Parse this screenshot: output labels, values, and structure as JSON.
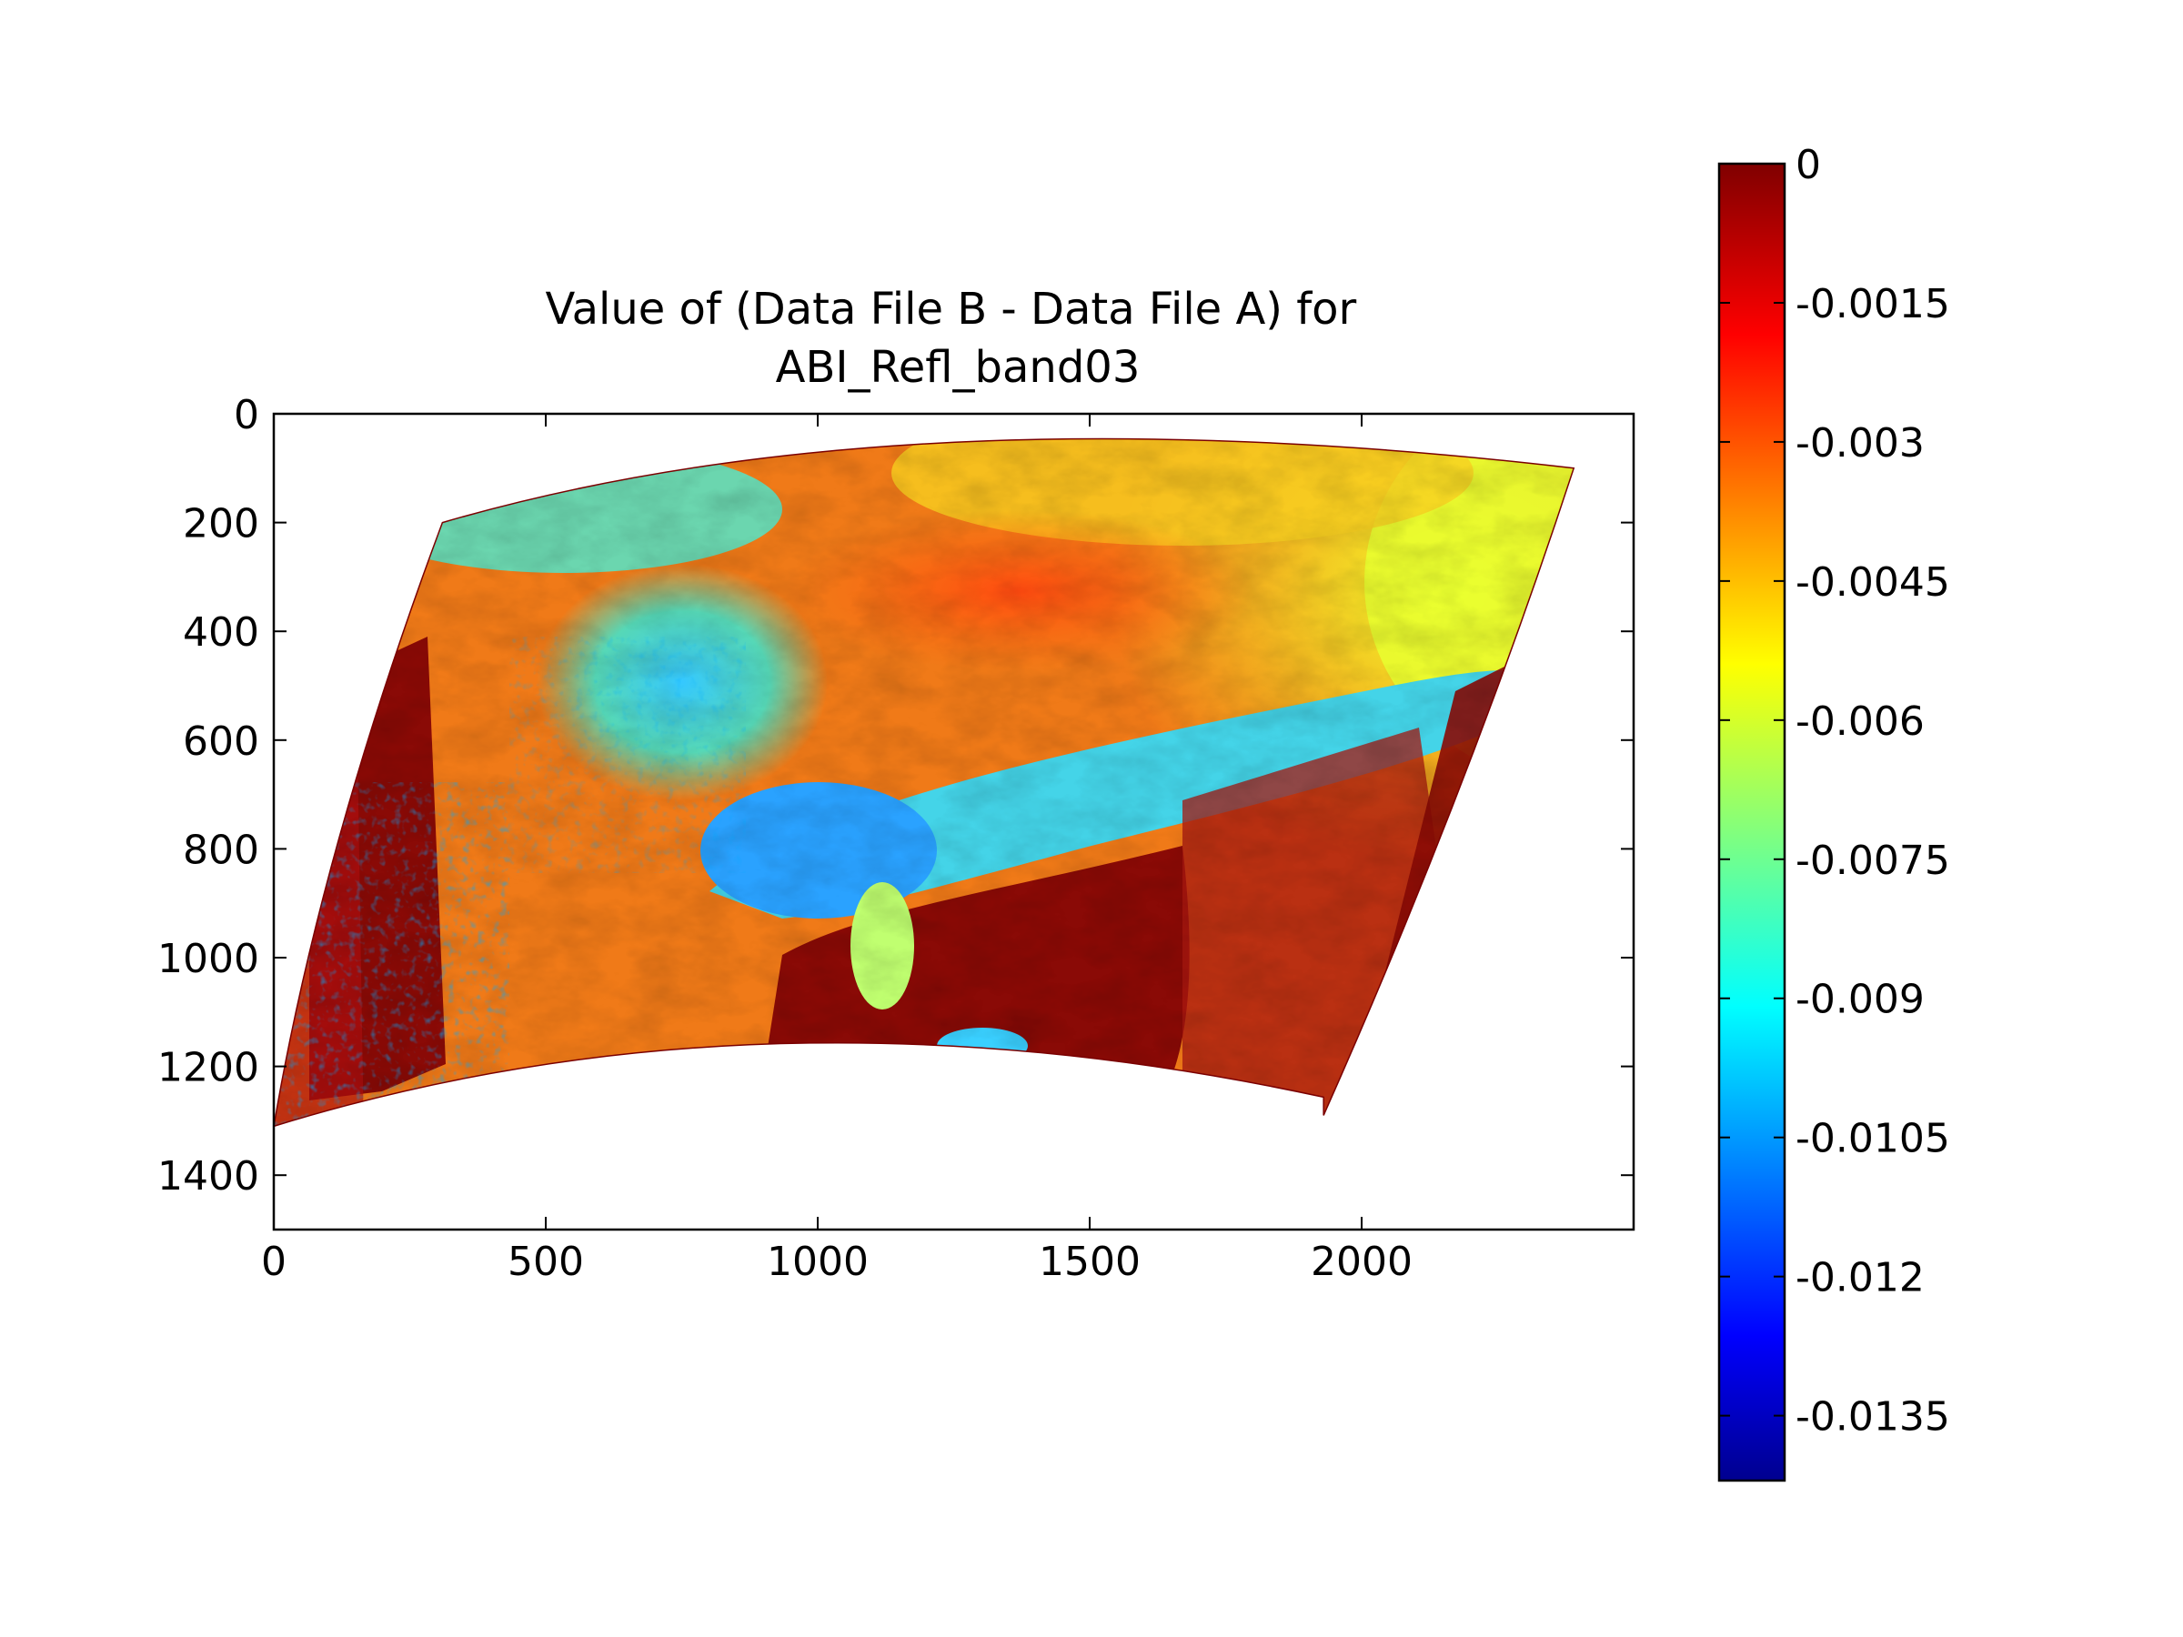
{
  "chart_data": {
    "type": "heatmap",
    "title": "Value of (Data File B - Data File A) for\nABI_Refl_band03",
    "xlabel": "",
    "ylabel": "",
    "xlim": [
      0,
      2500
    ],
    "ylim": [
      1500,
      0
    ],
    "x_ticks": [
      "0",
      "500",
      "1000",
      "1500",
      "2000"
    ],
    "x_tick_values": [
      0,
      500,
      1000,
      1500,
      2000
    ],
    "y_ticks": [
      "0",
      "200",
      "400",
      "600",
      "800",
      "1000",
      "1200",
      "1400"
    ],
    "y_tick_values": [
      0,
      200,
      400,
      600,
      800,
      1000,
      1200,
      1400
    ],
    "colormap": "jet",
    "colorbar": {
      "min": -0.0142,
      "max": 0,
      "ticks": [
        "0",
        "-0.0015",
        "-0.003",
        "-0.0045",
        "-0.006",
        "-0.0075",
        "-0.009",
        "-0.0105",
        "-0.012",
        "-0.0135"
      ],
      "tick_values": [
        0,
        -0.0015,
        -0.003,
        -0.0045,
        -0.006,
        -0.0075,
        -0.009,
        -0.0105,
        -0.012,
        -0.0135
      ]
    },
    "image_extent_corners": {
      "top_left": [
        310,
        200
      ],
      "top_right": [
        2390,
        100
      ],
      "bottom_right": [
        1930,
        1290
      ],
      "bottom_left": [
        0,
        1310
      ]
    },
    "grid": false
  }
}
